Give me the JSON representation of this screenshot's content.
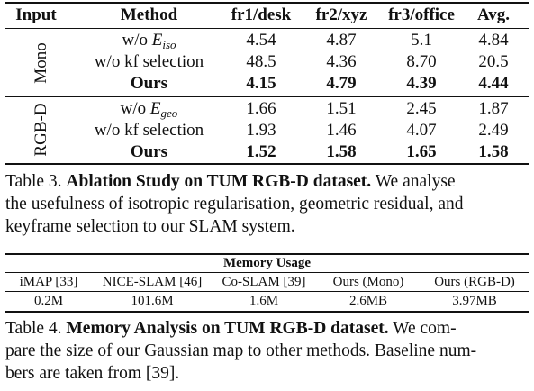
{
  "table3": {
    "headers": [
      "Input",
      "Method",
      "fr1/desk",
      "fr2/xyz",
      "fr3/office",
      "Avg."
    ],
    "groups": [
      {
        "label": "Mono",
        "rows": [
          {
            "method_base": "w/o E",
            "method_sub": "iso",
            "values": [
              "4.54",
              "4.87",
              "5.1",
              "4.84"
            ]
          },
          {
            "method": "w/o kf selection",
            "values": [
              "48.5",
              "4.36",
              "8.70",
              "20.5"
            ]
          },
          {
            "method": "Ours",
            "values": [
              "4.15",
              "4.79",
              "4.39",
              "4.44"
            ]
          }
        ]
      },
      {
        "label": "RGB-D",
        "rows": [
          {
            "method_base": "w/o E",
            "method_sub": "geo",
            "values": [
              "1.66",
              "1.51",
              "2.45",
              "1.87"
            ]
          },
          {
            "method": "w/o kf selection",
            "values": [
              "1.93",
              "1.46",
              "4.07",
              "2.49"
            ]
          },
          {
            "method": "Ours",
            "values": [
              "1.52",
              "1.58",
              "1.65",
              "1.58"
            ]
          }
        ]
      }
    ]
  },
  "caption3": {
    "label": "Table 3.",
    "title": "Ablation Study on TUM RGB-D dataset.",
    "lines": [
      "We analyse",
      "the usefulness of isotropic regularisation, geometric residual, and",
      "keyframe selection to our SLAM system."
    ]
  },
  "table4": {
    "title": "Memory Usage",
    "headers": [
      "iMAP [33]",
      "NICE-SLAM [46]",
      "Co-SLAM [39]",
      "Ours (Mono)",
      "Ours (RGB-D)"
    ],
    "values": [
      "0.2M",
      "101.6M",
      "1.6M",
      "2.6MB",
      "3.97MB"
    ]
  },
  "caption4": {
    "label": "Table 4.",
    "title": "Memory Analysis on TUM RGB-D dataset.",
    "lines": [
      "We com-",
      "pare the size of our Gaussian map to other methods. Baseline num-",
      "bers are taken from  [39]."
    ]
  }
}
